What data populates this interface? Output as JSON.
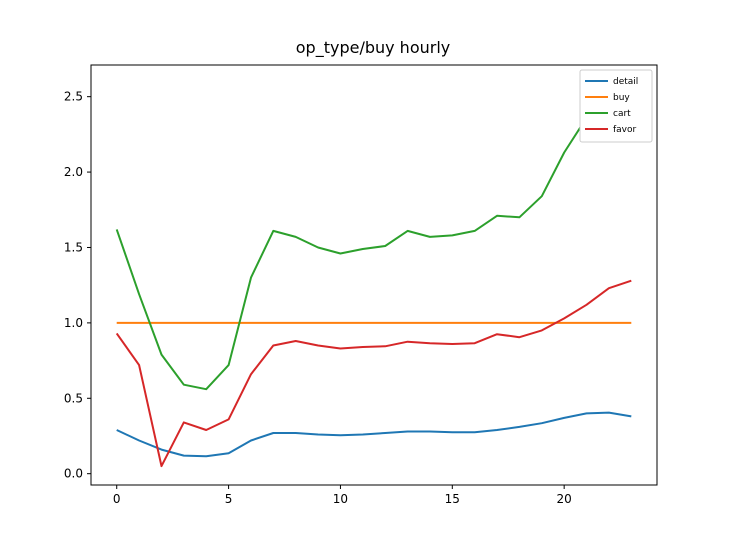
{
  "chart_data": {
    "type": "line",
    "title": "op_type/buy hourly",
    "xlabel": "",
    "ylabel": "",
    "xlim": [
      -1.15,
      24.15
    ],
    "ylim": [
      -0.075,
      2.71
    ],
    "x": [
      0,
      1,
      2,
      3,
      4,
      5,
      6,
      7,
      8,
      9,
      10,
      11,
      12,
      13,
      14,
      15,
      16,
      17,
      18,
      19,
      20,
      21,
      22,
      23
    ],
    "x_ticks": [
      0,
      5,
      10,
      15,
      20
    ],
    "x_tick_labels": [
      "0",
      "5",
      "10",
      "15",
      "20"
    ],
    "y_ticks": [
      0.0,
      0.5,
      1.0,
      1.5,
      2.0,
      2.5
    ],
    "y_tick_labels": [
      "0.0",
      "0.5",
      "1.0",
      "1.5",
      "2.0",
      "2.5"
    ],
    "grid": false,
    "legend_position": "top-right",
    "series": [
      {
        "name": "detail",
        "color": "#1f77b4",
        "values": [
          0.29,
          0.22,
          0.16,
          0.12,
          0.115,
          0.135,
          0.22,
          0.27,
          0.27,
          0.26,
          0.255,
          0.26,
          0.27,
          0.28,
          0.28,
          0.275,
          0.275,
          0.29,
          0.31,
          0.335,
          0.37,
          0.4,
          0.405,
          0.38
        ]
      },
      {
        "name": "buy",
        "color": "#ff7f0e",
        "values": [
          1.0,
          1.0,
          1.0,
          1.0,
          1.0,
          1.0,
          1.0,
          1.0,
          1.0,
          1.0,
          1.0,
          1.0,
          1.0,
          1.0,
          1.0,
          1.0,
          1.0,
          1.0,
          1.0,
          1.0,
          1.0,
          1.0,
          1.0,
          1.0
        ]
      },
      {
        "name": "cart",
        "color": "#2ca02c",
        "values": [
          1.62,
          1.19,
          0.79,
          0.59,
          0.56,
          0.72,
          1.3,
          1.61,
          1.57,
          1.5,
          1.46,
          1.49,
          1.51,
          1.61,
          1.57,
          1.58,
          1.61,
          1.71,
          1.7,
          1.84,
          2.13,
          2.36,
          2.56,
          2.6
        ]
      },
      {
        "name": "favor",
        "color": "#d62728",
        "values": [
          0.93,
          0.72,
          0.05,
          0.34,
          0.29,
          0.36,
          0.66,
          0.85,
          0.88,
          0.85,
          0.83,
          0.84,
          0.845,
          0.875,
          0.865,
          0.86,
          0.865,
          0.925,
          0.905,
          0.95,
          1.03,
          1.12,
          1.23,
          1.28
        ]
      }
    ]
  }
}
